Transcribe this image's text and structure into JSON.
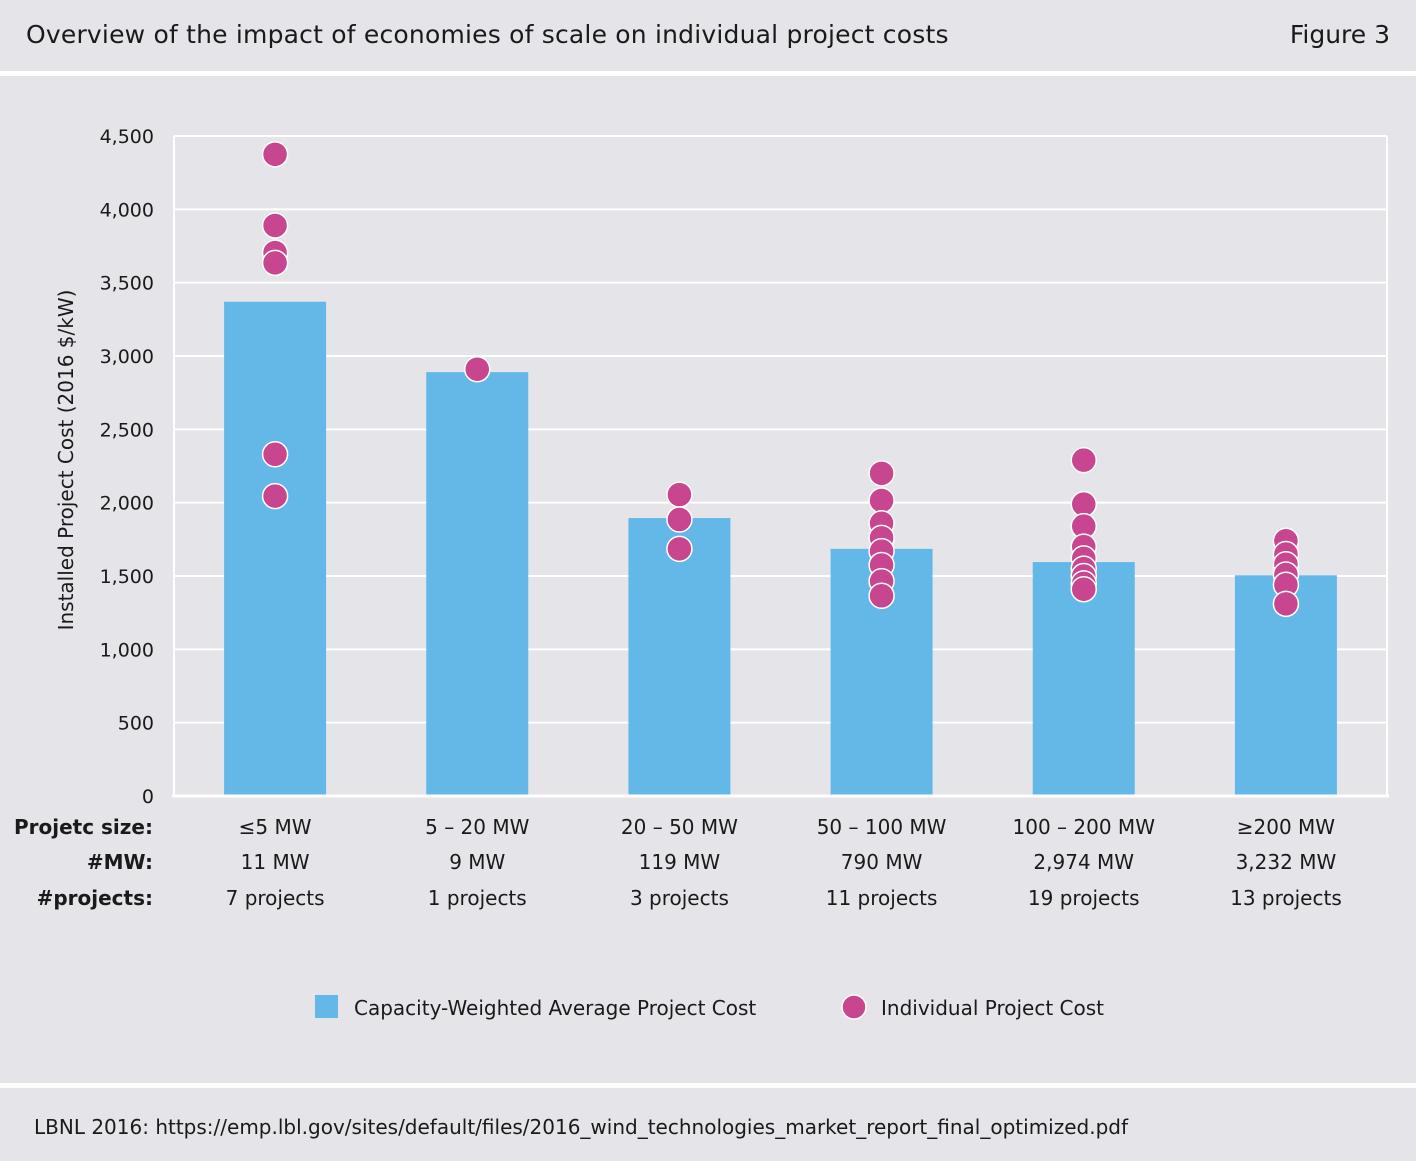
{
  "header": {
    "title": "Overview of the impact of economies of scale on individual project costs",
    "figure_label": "Figure 3"
  },
  "footer": {
    "source": "LBNL 2016: https://emp.lbl.gov/sites/default/files/2016_wind_technologies_market_report_final_optimized.pdf"
  },
  "colors": {
    "bar": "#64b8e8",
    "dot": "#c8468f",
    "grid": "#ffffff",
    "background": "#e4e4e9"
  },
  "chart_data": {
    "type": "bar",
    "title": "",
    "ylabel": "Installed Project Cost (2016 $/kW)",
    "ylim": [
      0,
      4500
    ],
    "yticks": [
      0,
      500,
      1000,
      1500,
      2000,
      2500,
      3000,
      3500,
      4000,
      4500
    ],
    "ytick_labels": [
      "0",
      "500",
      "1,000",
      "1,500",
      "2,000",
      "2,500",
      "3,000",
      "3,500",
      "4,000",
      "4,500"
    ],
    "grid": true,
    "row_labels": [
      "Projetc size:",
      "#MW:",
      "#projects:"
    ],
    "categories": [
      "≤5 MW",
      "5 – 20 MW",
      "20 – 50 MW",
      "50 – 100 MW",
      "100 – 200 MW",
      "≥200 MW"
    ],
    "mw": [
      "11 MW",
      "9 MW",
      "119 MW",
      "790 MW",
      "2,974 MW",
      "3,232 MW"
    ],
    "projects": [
      "7 projects",
      "1 projects",
      "3 projects",
      "11 projects",
      "19 projects",
      "13 projects"
    ],
    "series": [
      {
        "name": "Capacity-Weighted Average Project Cost",
        "kind": "bar",
        "values": [
          3370,
          2890,
          1895,
          1685,
          1595,
          1505
        ]
      },
      {
        "name": "Individual Project Cost",
        "kind": "scatter",
        "points": [
          [
            4375,
            3890,
            3705,
            3635,
            2330,
            2045
          ],
          [
            2910
          ],
          [
            2055,
            1885,
            1685
          ],
          [
            2200,
            2015,
            1860,
            1760,
            1670,
            1575,
            1465,
            1365
          ],
          [
            2290,
            1990,
            1840,
            1700,
            1620,
            1550,
            1500,
            1450,
            1410
          ],
          [
            1740,
            1650,
            1580,
            1510,
            1440,
            1310
          ]
        ]
      }
    ],
    "legend_position": "bottom-center"
  }
}
